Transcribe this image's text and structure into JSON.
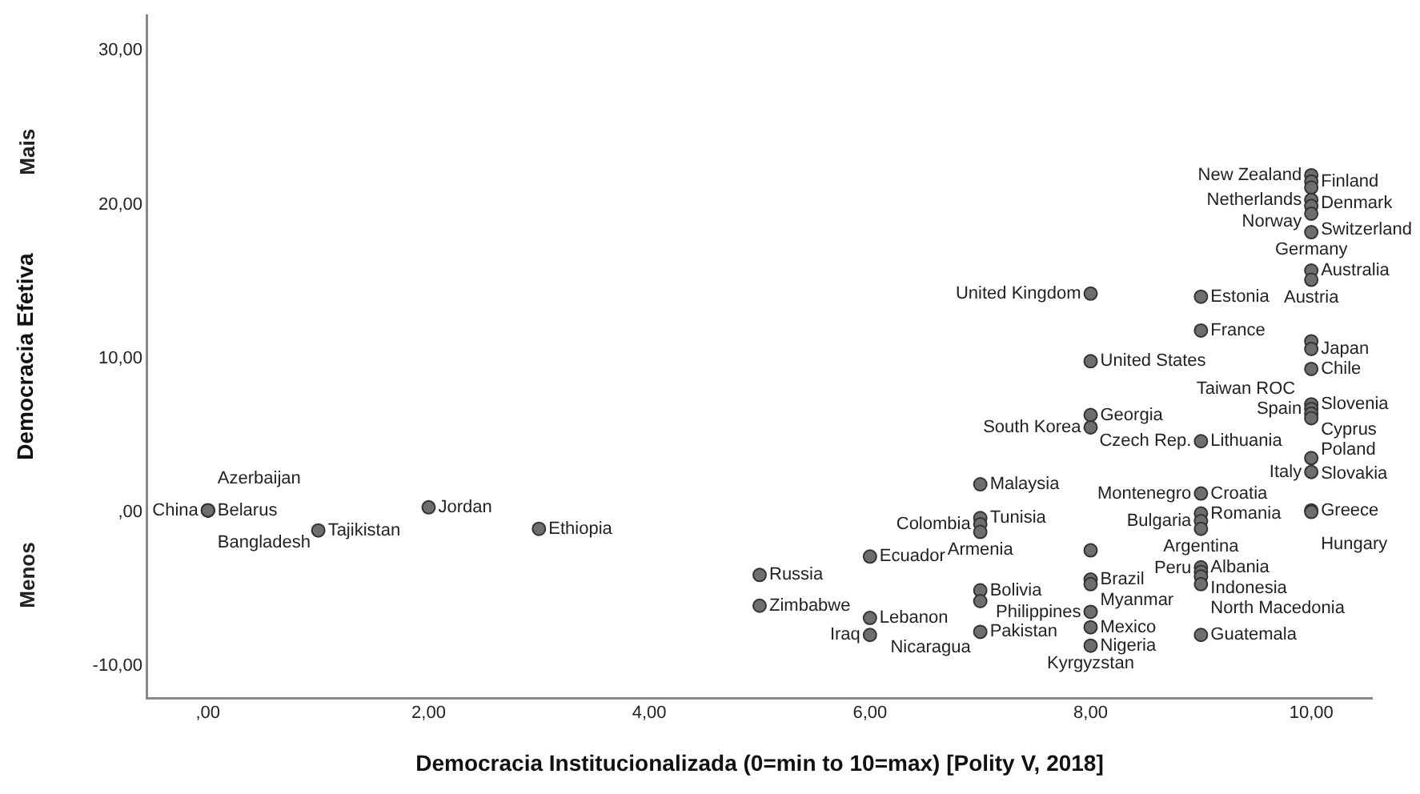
{
  "chart_data": {
    "type": "scatter",
    "xlabel": "Democracia Institucionalizada (0=min to 10=max) [Polity V, 2018]",
    "ylabel": "Democracia Efetiva",
    "xlim": [
      -0.55,
      10.55
    ],
    "ylim": [
      -12.1,
      32.3
    ],
    "xticks": [
      {
        "value": 0,
        "label": ",00"
      },
      {
        "value": 2,
        "label": "2,00"
      },
      {
        "value": 4,
        "label": "4,00"
      },
      {
        "value": 6,
        "label": "6,00"
      },
      {
        "value": 8,
        "label": "8,00"
      },
      {
        "value": 10,
        "label": "10,00"
      }
    ],
    "yticks": [
      {
        "value": -10,
        "label": "-10,00"
      },
      {
        "value": 0,
        "label": ",00"
      },
      {
        "value": 10,
        "label": "10,00"
      },
      {
        "value": 20,
        "label": "20,00"
      },
      {
        "value": 30,
        "label": "30,00"
      }
    ],
    "legend": false,
    "marker": "circle",
    "series": [
      {
        "color": "#6e6e6e",
        "x": [
          0,
          0,
          0,
          0,
          1,
          2,
          3,
          5,
          5,
          6,
          6,
          6,
          7,
          7,
          7,
          7,
          7,
          7,
          7,
          8,
          8,
          8,
          8,
          8,
          8,
          8,
          8,
          8,
          8,
          9,
          9,
          9,
          9,
          9,
          9,
          9,
          9,
          9,
          9,
          9,
          9,
          10,
          10,
          10,
          10,
          10,
          10,
          10,
          10,
          10,
          10,
          10,
          10,
          10,
          10,
          10,
          10,
          10,
          10,
          10,
          10
        ],
        "values": [
          0.1,
          0.1,
          0.1,
          0.1,
          -1.2,
          0.3,
          -1.1,
          -4.1,
          -6.1,
          -2.9,
          -6.9,
          -8.0,
          1.8,
          -0.4,
          -0.8,
          -1.3,
          -5.1,
          -5.8,
          -7.8,
          14.2,
          9.8,
          6.3,
          5.5,
          -2.5,
          -4.4,
          -4.7,
          -6.5,
          -7.5,
          -8.7,
          14.0,
          11.8,
          4.6,
          1.2,
          -0.1,
          -0.6,
          -1.1,
          -3.6,
          -3.9,
          -4.2,
          -4.7,
          -8.0,
          21.9,
          21.5,
          21.1,
          20.3,
          19.9,
          19.4,
          18.2,
          15.7,
          15.1,
          11.1,
          10.6,
          9.3,
          7.0,
          6.7,
          6.4,
          6.1,
          3.5,
          2.6,
          0.1,
          0.0
        ]
      }
    ],
    "annotations": [
      "Mais",
      "Menos",
      {
        "text": "Belarus",
        "x": 0,
        "y": 0.1
      },
      {
        "text": "China",
        "x": 0,
        "y": 0.1
      },
      {
        "text": "Azerbaijan",
        "x": 0,
        "y": 0.1
      },
      {
        "text": "Bangladesh",
        "x": 0,
        "y": 0.1
      },
      {
        "text": "Tajikistan",
        "x": 1,
        "y": -1.2
      },
      {
        "text": "Jordan",
        "x": 2,
        "y": 0.3
      },
      {
        "text": "Ethiopia",
        "x": 3,
        "y": -1.1
      },
      {
        "text": "Russia",
        "x": 5,
        "y": -4.1
      },
      {
        "text": "Zimbabwe",
        "x": 5,
        "y": -6.1
      },
      {
        "text": "Ecuador",
        "x": 6,
        "y": -2.9
      },
      {
        "text": "Lebanon",
        "x": 6,
        "y": -6.9
      },
      {
        "text": "Iraq",
        "x": 6,
        "y": -8.0
      },
      {
        "text": "Malaysia",
        "x": 7,
        "y": 1.8
      },
      {
        "text": "Tunisia",
        "x": 7,
        "y": -0.4
      },
      {
        "text": "Colombia",
        "x": 7,
        "y": -0.8
      },
      {
        "text": "Armenia",
        "x": 7,
        "y": -1.3
      },
      {
        "text": "Bolivia",
        "x": 7,
        "y": -5.1
      },
      {
        "text": "Pakistan",
        "x": 7,
        "y": -7.8
      },
      {
        "text": "Nicaragua",
        "x": 7,
        "y": -7.8
      },
      {
        "text": "United Kingdom",
        "x": 8,
        "y": 14.2
      },
      {
        "text": "United States",
        "x": 8,
        "y": 9.8
      },
      {
        "text": "Georgia",
        "x": 8,
        "y": 6.3
      },
      {
        "text": "South Korea",
        "x": 8,
        "y": 5.5
      },
      {
        "text": "Brazil",
        "x": 8,
        "y": -4.4
      },
      {
        "text": "Myanmar",
        "x": 8,
        "y": -4.7
      },
      {
        "text": "Philippines",
        "x": 8,
        "y": -6.5
      },
      {
        "text": "Mexico",
        "x": 8,
        "y": -7.5
      },
      {
        "text": "Kyrgyzstan",
        "x": 8,
        "y": -8.7
      },
      {
        "text": "Nigeria",
        "x": 8,
        "y": -8.7
      },
      {
        "text": "Estonia",
        "x": 9,
        "y": 14.0
      },
      {
        "text": "France",
        "x": 9,
        "y": 11.8
      },
      {
        "text": "Lithuania",
        "x": 9,
        "y": 4.6
      },
      {
        "text": "Czech Rep.",
        "x": 9,
        "y": 4.6
      },
      {
        "text": "Croatia",
        "x": 9,
        "y": 1.2
      },
      {
        "text": "Montenegro",
        "x": 9,
        "y": 1.2
      },
      {
        "text": "Romania",
        "x": 9,
        "y": -0.1
      },
      {
        "text": "Bulgaria",
        "x": 9,
        "y": -0.6
      },
      {
        "text": "Argentina",
        "x": 9,
        "y": -1.1
      },
      {
        "text": "Albania",
        "x": 9,
        "y": -3.6
      },
      {
        "text": "Indonesia",
        "x": 9,
        "y": -3.9
      },
      {
        "text": "North Macedonia",
        "x": 9,
        "y": -4.2
      },
      {
        "text": "Peru",
        "x": 9,
        "y": -4.7
      },
      {
        "text": "Guatemala",
        "x": 9,
        "y": -8.0
      },
      {
        "text": "New Zealand",
        "x": 10,
        "y": 21.9
      },
      {
        "text": "Finland",
        "x": 10,
        "y": 21.5
      },
      {
        "text": "Denmark",
        "x": 10,
        "y": 21.1
      },
      {
        "text": "Netherlands",
        "x": 10,
        "y": 20.3
      },
      {
        "text": "Norway",
        "x": 10,
        "y": 19.9
      },
      {
        "text": "Switzerland",
        "x": 10,
        "y": 19.4
      },
      {
        "text": "Germany",
        "x": 10,
        "y": 18.2
      },
      {
        "text": "Australia",
        "x": 10,
        "y": 15.7
      },
      {
        "text": "Austria",
        "x": 10,
        "y": 15.1
      },
      {
        "text": "Taiwan ROC",
        "x": 10,
        "y": 11.1
      },
      {
        "text": "Japan",
        "x": 10,
        "y": 10.6
      },
      {
        "text": "Chile",
        "x": 10,
        "y": 9.3
      },
      {
        "text": "Slovenia",
        "x": 10,
        "y": 7.0
      },
      {
        "text": "Spain",
        "x": 10,
        "y": 6.7
      },
      {
        "text": "Cyprus",
        "x": 10,
        "y": 6.4
      },
      {
        "text": "Poland",
        "x": 10,
        "y": 6.1
      },
      {
        "text": "Slovakia",
        "x": 10,
        "y": 3.5
      },
      {
        "text": "Italy",
        "x": 10,
        "y": 2.6
      },
      {
        "text": "Greece",
        "x": 10,
        "y": 0.1
      },
      {
        "text": "Hungary",
        "x": 10,
        "y": 0.0
      }
    ]
  }
}
